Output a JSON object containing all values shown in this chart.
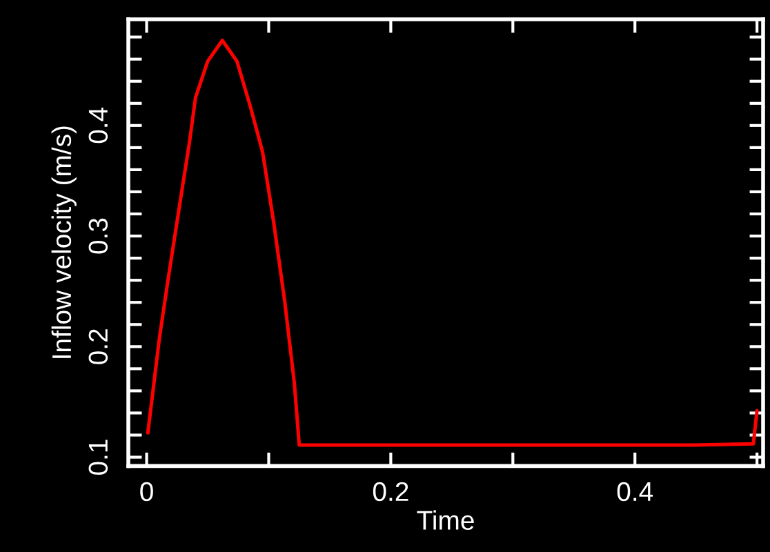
{
  "chart_data": {
    "type": "line",
    "xlabel": "Time",
    "ylabel": "Inflow velocity (m/s)",
    "xlim": [
      -0.015,
      0.505
    ],
    "ylim": [
      0.092,
      0.496
    ],
    "xticks": [
      0,
      {
        "value": 0.1,
        "label": null
      },
      0.2,
      {
        "value": 0.3,
        "label": null
      },
      0.4,
      {
        "value": 0.5,
        "label": null
      }
    ],
    "yticks": [
      0.1,
      {
        "value": 0.12,
        "label": null
      },
      {
        "value": 0.14,
        "label": null
      },
      {
        "value": 0.16,
        "label": null
      },
      {
        "value": 0.18,
        "label": null
      },
      0.2,
      {
        "value": 0.22,
        "label": null
      },
      {
        "value": 0.24,
        "label": null
      },
      {
        "value": 0.26,
        "label": null
      },
      {
        "value": 0.28,
        "label": null
      },
      0.3,
      {
        "value": 0.32,
        "label": null
      },
      {
        "value": 0.34,
        "label": null
      },
      {
        "value": 0.36,
        "label": null
      },
      {
        "value": 0.38,
        "label": null
      },
      0.4,
      {
        "value": 0.42,
        "label": null
      },
      {
        "value": 0.44,
        "label": null
      },
      {
        "value": 0.46,
        "label": null
      },
      {
        "value": 0.48,
        "label": null
      }
    ],
    "grid": false,
    "marker": "none",
    "line_style": "solid",
    "series": [
      {
        "color": "#ff0000",
        "x": [
          0.001,
          0.0105,
          0.018,
          0.029,
          0.035,
          0.04,
          0.05,
          0.062,
          0.074,
          0.085,
          0.095,
          0.104,
          0.113,
          0.121,
          0.125,
          0.15,
          0.2,
          0.25,
          0.3,
          0.35,
          0.4,
          0.45,
          0.497,
          0.5
        ],
        "values": [
          0.122,
          0.208,
          0.264,
          0.342,
          0.384,
          0.425,
          0.458,
          0.477,
          0.458,
          0.417,
          0.376,
          0.313,
          0.242,
          0.167,
          0.111,
          0.111,
          0.111,
          0.111,
          0.111,
          0.111,
          0.111,
          0.111,
          0.112,
          0.142
        ]
      }
    ]
  }
}
